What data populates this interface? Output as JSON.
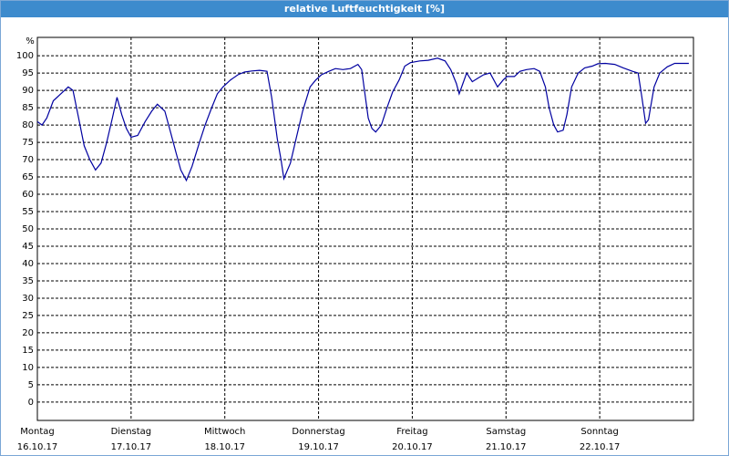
{
  "chart_data": {
    "type": "line",
    "title": "relative Luftfeuchtigkeit [%]",
    "y_unit": "%",
    "xlim": [
      0,
      7
    ],
    "ylim": [
      -5.3,
      105.3
    ],
    "yticks": [
      0,
      5,
      10,
      15,
      20,
      25,
      30,
      35,
      40,
      45,
      50,
      55,
      60,
      65,
      70,
      75,
      80,
      85,
      90,
      95,
      100
    ],
    "xticks": [
      {
        "value": 0,
        "label": "Montag",
        "date": "16.10.17"
      },
      {
        "value": 1,
        "label": "Dienstag",
        "date": "17.10.17"
      },
      {
        "value": 2,
        "label": "Mittwoch",
        "date": "18.10.17"
      },
      {
        "value": 3,
        "label": "Donnerstag",
        "date": "19.10.17"
      },
      {
        "value": 4,
        "label": "Freitag",
        "date": "20.10.17"
      },
      {
        "value": 5,
        "label": "Samstag",
        "date": "21.10.17"
      },
      {
        "value": 6,
        "label": "Sonntag",
        "date": "22.10.17"
      }
    ],
    "grid": true,
    "series": [
      {
        "name": "relative Luftfeuchtigkeit",
        "color": "#0000a0",
        "x": [
          0,
          0.05,
          0.1,
          0.17,
          0.25,
          0.33,
          0.38,
          0.44,
          0.5,
          0.56,
          0.62,
          0.68,
          0.74,
          0.8,
          0.85,
          0.9,
          0.95,
          1.0,
          1.07,
          1.15,
          1.22,
          1.28,
          1.36,
          1.42,
          1.48,
          1.53,
          1.59,
          1.65,
          1.73,
          1.79,
          1.86,
          1.92,
          1.98,
          2.06,
          2.14,
          2.21,
          2.29,
          2.37,
          2.45,
          2.5,
          2.56,
          2.6,
          2.63,
          2.7,
          2.76,
          2.83,
          2.91,
          2.97,
          3.03,
          3.11,
          3.18,
          3.26,
          3.34,
          3.42,
          3.46,
          3.5,
          3.53,
          3.57,
          3.61,
          3.67,
          3.73,
          3.79,
          3.86,
          3.92,
          3.98,
          4.08,
          4.17,
          4.27,
          4.35,
          4.41,
          4.47,
          4.5,
          4.54,
          4.58,
          4.64,
          4.7,
          4.76,
          4.83,
          4.91,
          4.97,
          5.01,
          5.09,
          5.15,
          5.22,
          5.3,
          5.36,
          5.42,
          5.46,
          5.51,
          5.55,
          5.61,
          5.65,
          5.7,
          5.77,
          5.84,
          5.92,
          5.98,
          6.06,
          6.16,
          6.25,
          6.35,
          6.41,
          6.45,
          6.49,
          6.52,
          6.58,
          6.64,
          6.72,
          6.8,
          6.89,
          6.95
        ],
        "values": [
          81,
          80,
          82,
          87,
          89,
          91,
          90,
          82,
          74,
          70,
          67,
          69,
          75,
          82,
          88,
          83,
          79,
          76.5,
          77,
          81,
          84,
          86,
          84,
          78,
          72,
          67,
          64,
          68,
          75,
          80,
          85,
          89,
          91,
          93,
          94.5,
          95.3,
          95.6,
          95.8,
          95.5,
          88,
          76,
          70,
          64.5,
          69,
          76,
          84,
          91,
          93,
          94.5,
          95.5,
          96.3,
          96,
          96.3,
          97.5,
          96,
          88,
          82,
          79,
          78,
          80,
          85,
          89.5,
          93,
          97,
          98,
          98.5,
          98.7,
          99.3,
          98.5,
          96,
          92,
          89,
          92,
          95,
          92.5,
          93.5,
          94.5,
          95,
          91,
          93,
          94,
          94,
          95.5,
          96,
          96.3,
          95.5,
          91,
          85,
          80,
          78,
          78.5,
          83,
          91,
          95,
          96.5,
          97,
          97.7,
          97.8,
          97.5,
          96.5,
          95.5,
          95,
          88,
          80.5,
          81.5,
          91,
          95,
          96.8,
          97.8,
          97.8,
          97.8
        ]
      }
    ]
  }
}
